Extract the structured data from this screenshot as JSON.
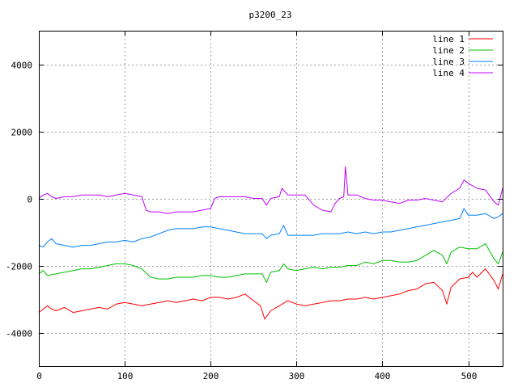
{
  "chart_data": {
    "type": "line",
    "title": "p3200_23",
    "xlim": [
      0,
      540
    ],
    "ylim": [
      -5000,
      5000
    ],
    "x_ticks": [
      0,
      100,
      200,
      300,
      400,
      500
    ],
    "y_ticks": [
      -4000,
      -2000,
      0,
      2000,
      4000
    ],
    "grid": true,
    "legend_position": "top-right",
    "series": [
      {
        "name": "line 1",
        "color": "#ff0000",
        "points": [
          [
            0,
            -3400
          ],
          [
            5,
            -3300
          ],
          [
            10,
            -3200
          ],
          [
            15,
            -3300
          ],
          [
            20,
            -3350
          ],
          [
            30,
            -3250
          ],
          [
            40,
            -3400
          ],
          [
            50,
            -3350
          ],
          [
            60,
            -3300
          ],
          [
            70,
            -3250
          ],
          [
            80,
            -3300
          ],
          [
            90,
            -3150
          ],
          [
            100,
            -3100
          ],
          [
            110,
            -3150
          ],
          [
            120,
            -3200
          ],
          [
            130,
            -3150
          ],
          [
            140,
            -3100
          ],
          [
            150,
            -3050
          ],
          [
            160,
            -3100
          ],
          [
            170,
            -3050
          ],
          [
            180,
            -3000
          ],
          [
            190,
            -3050
          ],
          [
            200,
            -2950
          ],
          [
            210,
            -2950
          ],
          [
            220,
            -3000
          ],
          [
            230,
            -2950
          ],
          [
            240,
            -2850
          ],
          [
            250,
            -3050
          ],
          [
            258,
            -3200
          ],
          [
            263,
            -3600
          ],
          [
            270,
            -3350
          ],
          [
            280,
            -3200
          ],
          [
            290,
            -3050
          ],
          [
            300,
            -3150
          ],
          [
            310,
            -3200
          ],
          [
            320,
            -3150
          ],
          [
            330,
            -3100
          ],
          [
            340,
            -3050
          ],
          [
            350,
            -3050
          ],
          [
            360,
            -3000
          ],
          [
            370,
            -3000
          ],
          [
            380,
            -2950
          ],
          [
            390,
            -3000
          ],
          [
            400,
            -2950
          ],
          [
            410,
            -2900
          ],
          [
            420,
            -2850
          ],
          [
            430,
            -2750
          ],
          [
            440,
            -2700
          ],
          [
            450,
            -2550
          ],
          [
            460,
            -2500
          ],
          [
            470,
            -2750
          ],
          [
            475,
            -3150
          ],
          [
            480,
            -2650
          ],
          [
            490,
            -2400
          ],
          [
            500,
            -2350
          ],
          [
            505,
            -2200
          ],
          [
            510,
            -2350
          ],
          [
            520,
            -2100
          ],
          [
            530,
            -2450
          ],
          [
            535,
            -2700
          ],
          [
            540,
            -2250
          ]
        ]
      },
      {
        "name": "line 2",
        "color": "#00c000",
        "points": [
          [
            0,
            -2250
          ],
          [
            5,
            -2150
          ],
          [
            10,
            -2300
          ],
          [
            20,
            -2250
          ],
          [
            30,
            -2200
          ],
          [
            40,
            -2150
          ],
          [
            50,
            -2100
          ],
          [
            60,
            -2100
          ],
          [
            70,
            -2050
          ],
          [
            80,
            -2000
          ],
          [
            90,
            -1950
          ],
          [
            100,
            -1950
          ],
          [
            110,
            -2000
          ],
          [
            120,
            -2100
          ],
          [
            130,
            -2350
          ],
          [
            140,
            -2400
          ],
          [
            150,
            -2400
          ],
          [
            160,
            -2350
          ],
          [
            170,
            -2350
          ],
          [
            180,
            -2350
          ],
          [
            190,
            -2300
          ],
          [
            200,
            -2300
          ],
          [
            210,
            -2350
          ],
          [
            220,
            -2350
          ],
          [
            230,
            -2300
          ],
          [
            240,
            -2250
          ],
          [
            250,
            -2250
          ],
          [
            260,
            -2250
          ],
          [
            265,
            -2500
          ],
          [
            270,
            -2200
          ],
          [
            280,
            -2150
          ],
          [
            285,
            -1950
          ],
          [
            290,
            -2100
          ],
          [
            300,
            -2150
          ],
          [
            310,
            -2100
          ],
          [
            320,
            -2050
          ],
          [
            330,
            -2100
          ],
          [
            340,
            -2050
          ],
          [
            350,
            -2050
          ],
          [
            360,
            -2000
          ],
          [
            370,
            -2000
          ],
          [
            380,
            -1900
          ],
          [
            390,
            -1950
          ],
          [
            400,
            -1850
          ],
          [
            410,
            -1850
          ],
          [
            420,
            -1900
          ],
          [
            430,
            -1900
          ],
          [
            440,
            -1850
          ],
          [
            450,
            -1700
          ],
          [
            460,
            -1550
          ],
          [
            470,
            -1700
          ],
          [
            475,
            -1950
          ],
          [
            480,
            -1600
          ],
          [
            490,
            -1450
          ],
          [
            500,
            -1500
          ],
          [
            510,
            -1500
          ],
          [
            520,
            -1350
          ],
          [
            530,
            -1800
          ],
          [
            535,
            -1950
          ],
          [
            540,
            -1600
          ]
        ]
      },
      {
        "name": "line 3",
        "color": "#0080ff",
        "points": [
          [
            0,
            -1400
          ],
          [
            5,
            -1450
          ],
          [
            10,
            -1300
          ],
          [
            15,
            -1200
          ],
          [
            20,
            -1350
          ],
          [
            30,
            -1400
          ],
          [
            40,
            -1450
          ],
          [
            50,
            -1400
          ],
          [
            60,
            -1400
          ],
          [
            70,
            -1350
          ],
          [
            80,
            -1300
          ],
          [
            90,
            -1300
          ],
          [
            100,
            -1250
          ],
          [
            110,
            -1300
          ],
          [
            120,
            -1200
          ],
          [
            130,
            -1150
          ],
          [
            140,
            -1050
          ],
          [
            150,
            -950
          ],
          [
            160,
            -900
          ],
          [
            170,
            -900
          ],
          [
            180,
            -900
          ],
          [
            190,
            -850
          ],
          [
            200,
            -850
          ],
          [
            210,
            -900
          ],
          [
            220,
            -950
          ],
          [
            230,
            -1000
          ],
          [
            240,
            -1050
          ],
          [
            250,
            -1050
          ],
          [
            260,
            -1050
          ],
          [
            265,
            -1200
          ],
          [
            270,
            -1100
          ],
          [
            280,
            -1050
          ],
          [
            285,
            -800
          ],
          [
            290,
            -1100
          ],
          [
            300,
            -1100
          ],
          [
            310,
            -1100
          ],
          [
            320,
            -1100
          ],
          [
            330,
            -1050
          ],
          [
            340,
            -1050
          ],
          [
            350,
            -1050
          ],
          [
            360,
            -1000
          ],
          [
            370,
            -1050
          ],
          [
            380,
            -1000
          ],
          [
            390,
            -1050
          ],
          [
            400,
            -1000
          ],
          [
            410,
            -1000
          ],
          [
            420,
            -950
          ],
          [
            430,
            -900
          ],
          [
            440,
            -850
          ],
          [
            450,
            -800
          ],
          [
            460,
            -750
          ],
          [
            470,
            -700
          ],
          [
            480,
            -650
          ],
          [
            490,
            -600
          ],
          [
            495,
            -300
          ],
          [
            500,
            -500
          ],
          [
            510,
            -500
          ],
          [
            520,
            -450
          ],
          [
            530,
            -600
          ],
          [
            535,
            -550
          ],
          [
            540,
            -450
          ]
        ]
      },
      {
        "name": "line 4",
        "color": "#c000ff",
        "points": [
          [
            0,
            0
          ],
          [
            5,
            100
          ],
          [
            10,
            150
          ],
          [
            15,
            50
          ],
          [
            20,
            0
          ],
          [
            30,
            50
          ],
          [
            40,
            50
          ],
          [
            50,
            100
          ],
          [
            60,
            100
          ],
          [
            70,
            100
          ],
          [
            80,
            50
          ],
          [
            90,
            100
          ],
          [
            100,
            150
          ],
          [
            110,
            100
          ],
          [
            120,
            50
          ],
          [
            125,
            -350
          ],
          [
            130,
            -400
          ],
          [
            140,
            -400
          ],
          [
            150,
            -450
          ],
          [
            160,
            -400
          ],
          [
            170,
            -400
          ],
          [
            180,
            -400
          ],
          [
            190,
            -350
          ],
          [
            200,
            -300
          ],
          [
            205,
            0
          ],
          [
            210,
            50
          ],
          [
            220,
            50
          ],
          [
            230,
            50
          ],
          [
            240,
            50
          ],
          [
            250,
            0
          ],
          [
            260,
            0
          ],
          [
            265,
            -200
          ],
          [
            270,
            0
          ],
          [
            280,
            50
          ],
          [
            283,
            300
          ],
          [
            290,
            100
          ],
          [
            300,
            100
          ],
          [
            310,
            100
          ],
          [
            320,
            -200
          ],
          [
            330,
            -350
          ],
          [
            340,
            -400
          ],
          [
            345,
            -150
          ],
          [
            350,
            0
          ],
          [
            355,
            50
          ],
          [
            357,
            950
          ],
          [
            360,
            100
          ],
          [
            370,
            100
          ],
          [
            380,
            0
          ],
          [
            390,
            -50
          ],
          [
            400,
            -50
          ],
          [
            410,
            -100
          ],
          [
            420,
            -150
          ],
          [
            430,
            -50
          ],
          [
            440,
            -50
          ],
          [
            450,
            0
          ],
          [
            460,
            -50
          ],
          [
            470,
            -100
          ],
          [
            480,
            150
          ],
          [
            490,
            300
          ],
          [
            495,
            550
          ],
          [
            500,
            450
          ],
          [
            510,
            300
          ],
          [
            520,
            250
          ],
          [
            530,
            -100
          ],
          [
            535,
            -200
          ],
          [
            540,
            300
          ]
        ]
      }
    ]
  }
}
